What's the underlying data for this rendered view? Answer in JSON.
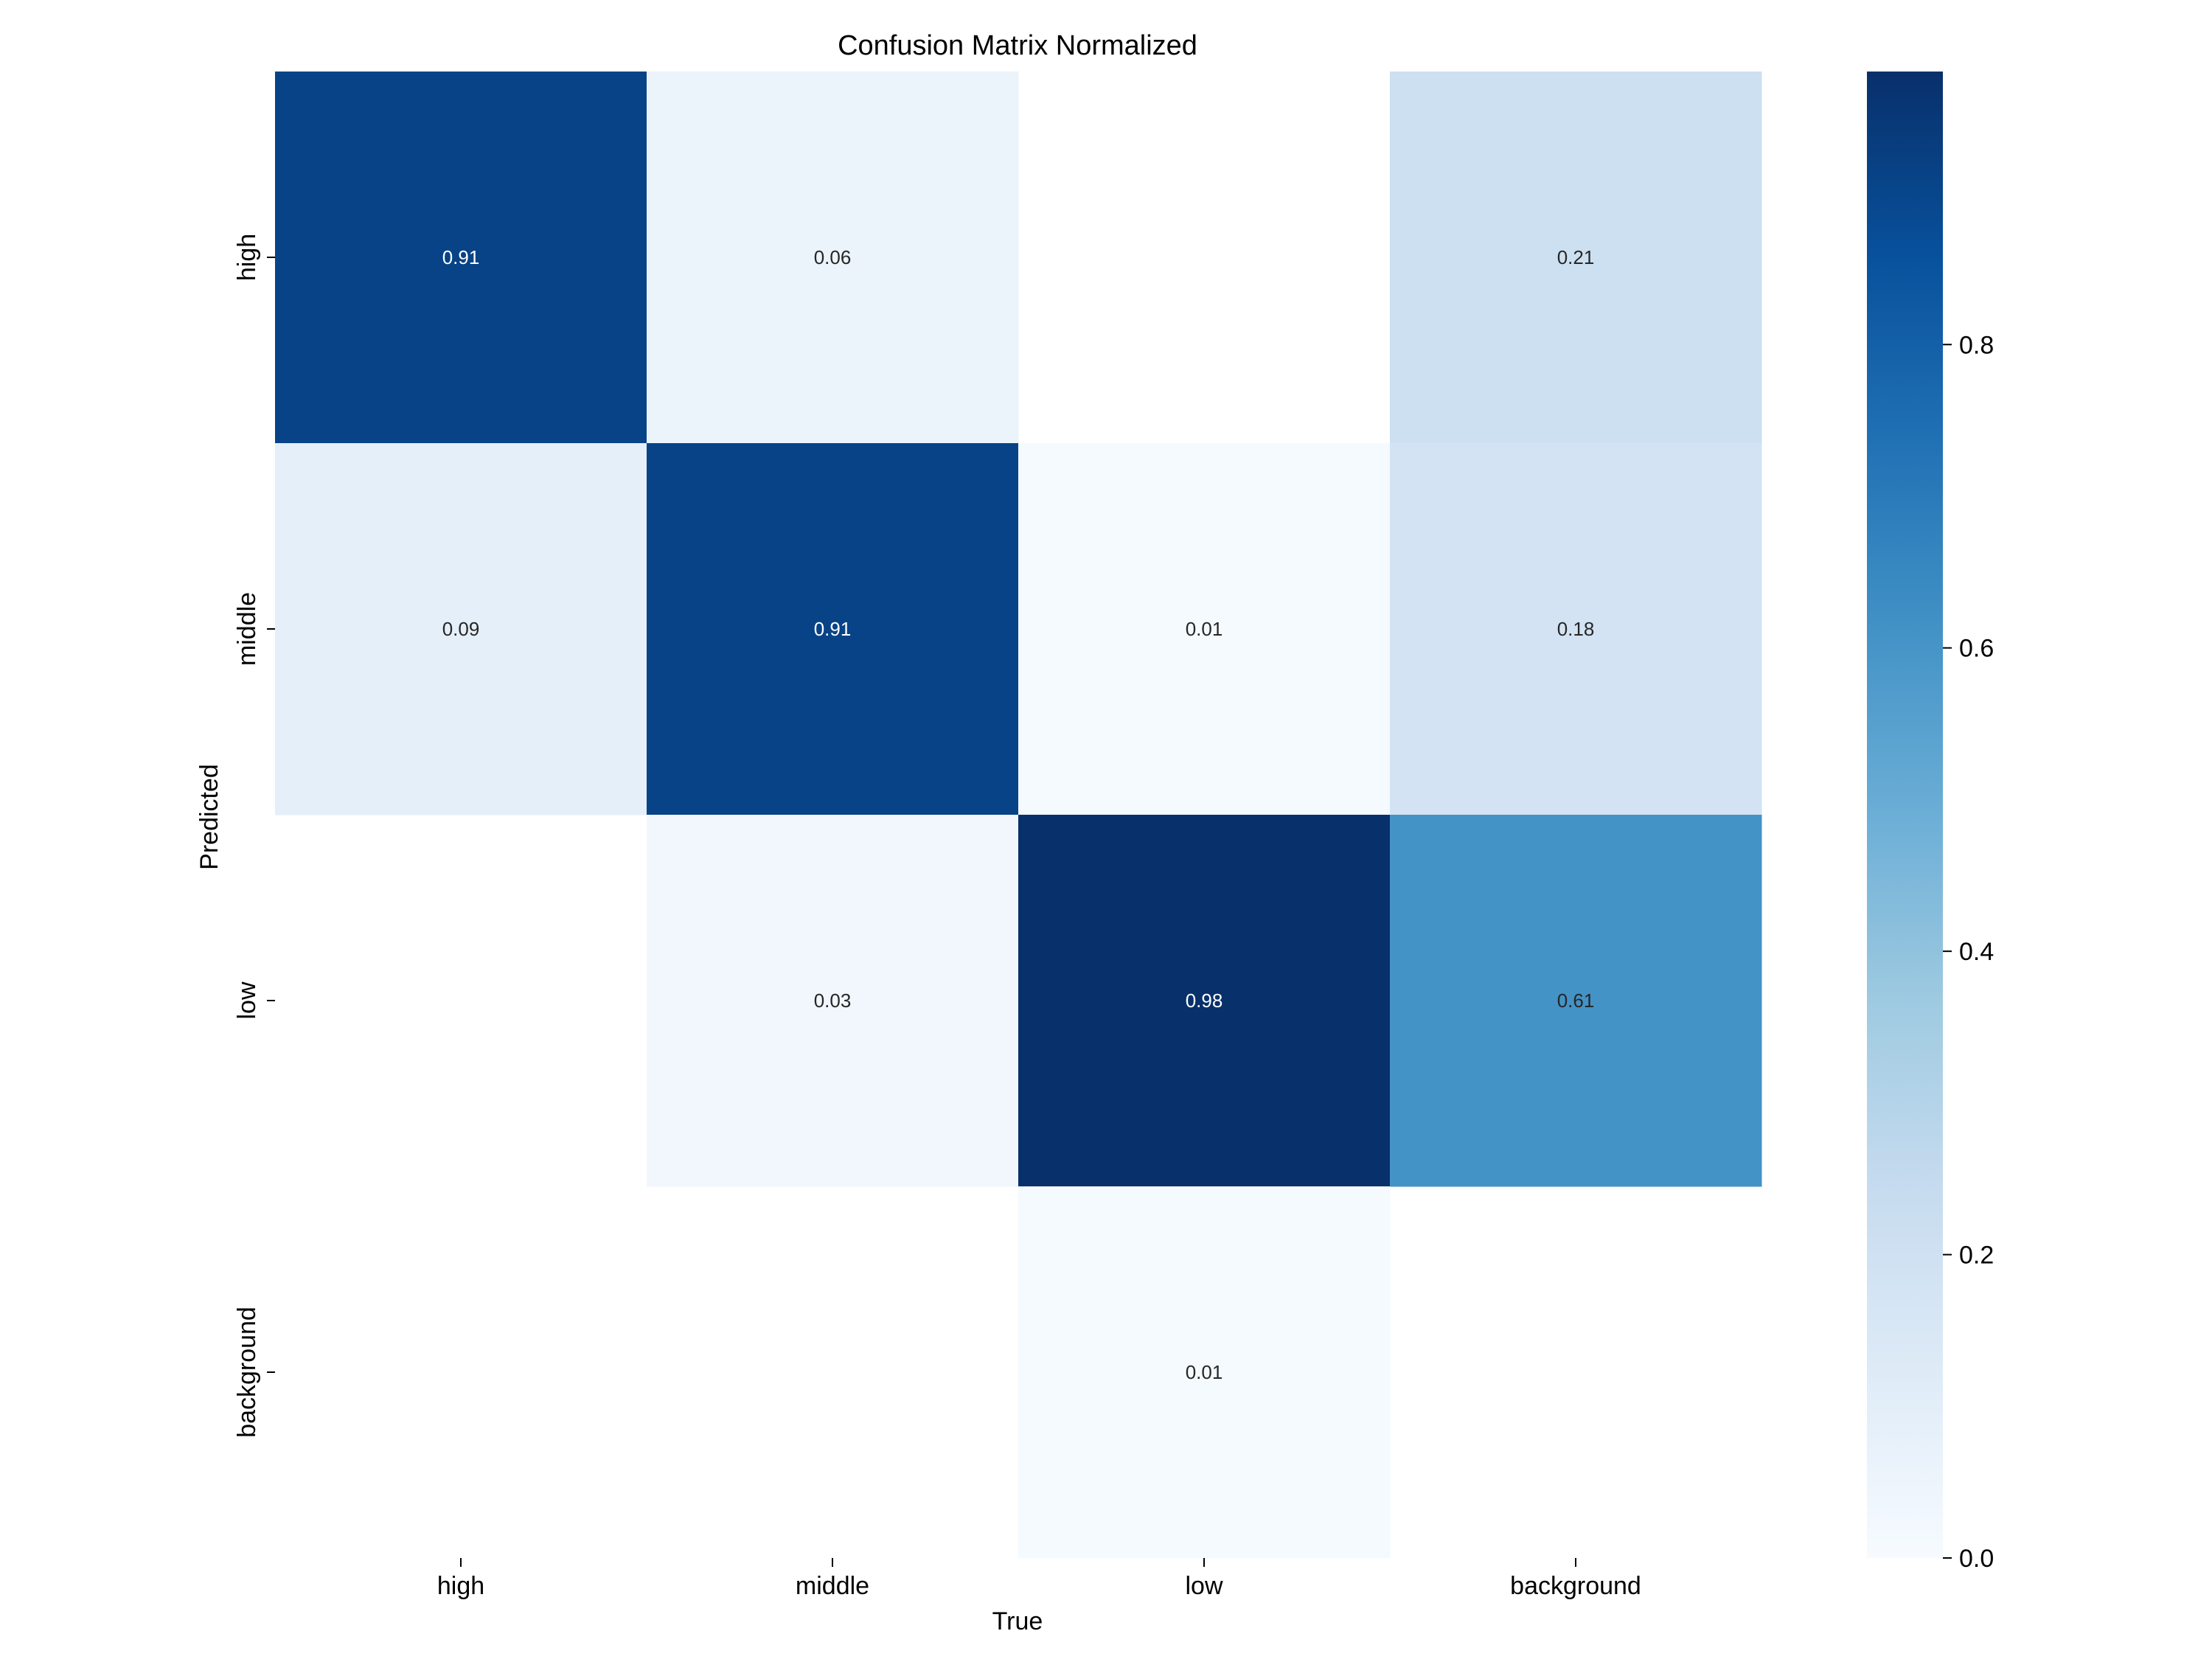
{
  "chart_data": {
    "type": "heatmap",
    "title": "Confusion Matrix Normalized",
    "xlabel": "True",
    "ylabel": "Predicted",
    "x_categories": [
      "high",
      "middle",
      "low",
      "background"
    ],
    "y_categories": [
      "high",
      "middle",
      "low",
      "background"
    ],
    "values": [
      [
        0.91,
        0.06,
        null,
        0.21
      ],
      [
        0.09,
        0.91,
        0.01,
        0.18
      ],
      [
        null,
        0.03,
        0.98,
        0.61
      ],
      [
        null,
        null,
        0.01,
        null
      ]
    ],
    "cell_labels": [
      [
        "0.91",
        "0.06",
        "",
        "0.21"
      ],
      [
        "0.09",
        "0.91",
        "0.01",
        "0.18"
      ],
      [
        "",
        "0.03",
        "0.98",
        "0.61"
      ],
      [
        "",
        "",
        "0.01",
        ""
      ]
    ],
    "colormap": "Blues",
    "color_range": [
      0,
      0.98
    ],
    "colorbar": {
      "ticks": [
        0.0,
        0.2,
        0.4,
        0.6,
        0.8
      ],
      "tick_labels": [
        "0.0",
        "0.2",
        "0.4",
        "0.6",
        "0.8"
      ]
    },
    "grid": false,
    "legend": "colorbar-right"
  }
}
